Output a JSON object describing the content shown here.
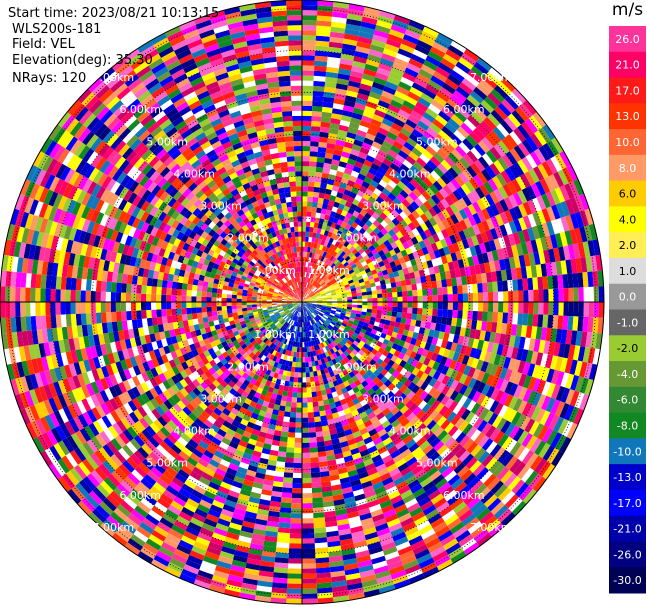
{
  "info": {
    "start_time": "Start time: 2023/08/21 10:13:15",
    "instrument": "WLS200s-181",
    "field": "Field: VEL",
    "elevation": "Elevation(deg): 35.30",
    "nrays": "NRays: 120"
  },
  "colorbar": {
    "title": "m/s",
    "ticks": [
      "26.0",
      "21.0",
      "17.0",
      "13.0",
      "10.0",
      "8.0",
      "6.0",
      "4.0",
      "2.0",
      "1.0",
      "0.0",
      "-1.0",
      "-2.0",
      "-4.0",
      "-6.0",
      "-8.0",
      "-10.0",
      "-13.0",
      "-17.0",
      "-21.0",
      "-26.0",
      "-30.0"
    ],
    "colors": [
      "#ff3399",
      "#ff0066",
      "#ff1a1a",
      "#ff3300",
      "#ff6633",
      "#ff9966",
      "#ffcc00",
      "#ffff00",
      "#ffee55",
      "#dddddd",
      "#999999",
      "#666666",
      "#99cc33",
      "#669933",
      "#338833",
      "#118822",
      "#1177bb",
      "#0000cc",
      "#0000ff",
      "#0000aa",
      "#000080",
      "#000055"
    ]
  },
  "chart_data": {
    "type": "ppi",
    "field": "VEL",
    "units": "m/s",
    "nrays": 120,
    "elevation_deg": 35.3,
    "range_ring_labels": [
      "1.00km",
      "2.00km",
      "3.00km",
      "4.00km",
      "5.00km",
      "6.00km",
      "7.00km"
    ],
    "range_rings_km": [
      1,
      2,
      3,
      4,
      5,
      6,
      7
    ],
    "clim": [
      -30,
      26
    ],
    "near_field_pattern": {
      "max_range_km": 1.2,
      "north": "red/pink",
      "east": "yellow/orange",
      "south": "blue",
      "west": "orange/green"
    },
    "far_field": "noise (all colors)"
  }
}
